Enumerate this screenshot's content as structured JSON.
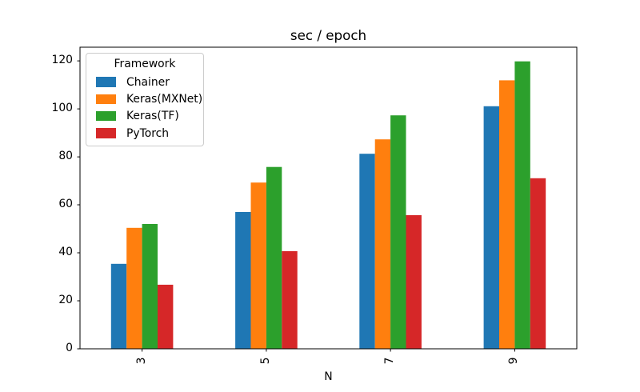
{
  "chart_data": {
    "type": "bar",
    "title": "sec / epoch",
    "xlabel": "N",
    "ylabel": "",
    "categories": [
      "3",
      "5",
      "7",
      "9"
    ],
    "series": [
      {
        "name": "Chainer",
        "color": "#1f77b4",
        "values": [
          35.4,
          57.0,
          81.3,
          101.1
        ]
      },
      {
        "name": "Keras(MXNet)",
        "color": "#ff7f0e",
        "values": [
          50.4,
          69.3,
          87.3,
          111.9
        ]
      },
      {
        "name": "Keras(TF)",
        "color": "#2ca02c",
        "values": [
          52.0,
          75.8,
          97.3,
          119.8
        ]
      },
      {
        "name": "PyTorch",
        "color": "#d62728",
        "values": [
          26.7,
          40.7,
          55.7,
          71.1
        ]
      }
    ],
    "legend": {
      "title": "Framework",
      "position": "upper left"
    },
    "yticks": [
      0,
      20,
      40,
      60,
      80,
      100,
      120
    ],
    "ylim": [
      0,
      125.7
    ],
    "xtick_rotation": 90,
    "grid": false,
    "bar_group_fraction": 0.5,
    "axis_color": "#000000"
  }
}
